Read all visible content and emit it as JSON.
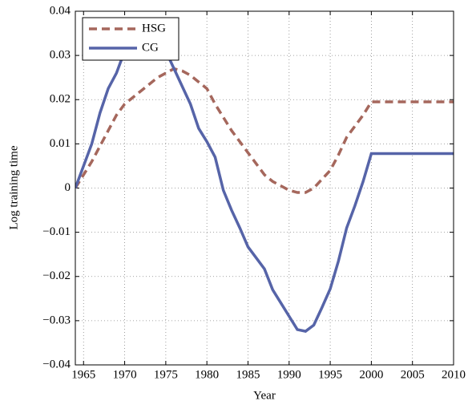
{
  "chart_data": {
    "type": "line",
    "xlabel": "Year",
    "ylabel": "Log training time",
    "x": [
      1964,
      1965,
      1966,
      1967,
      1968,
      1969,
      1970,
      1971,
      1972,
      1973,
      1974,
      1975,
      1976,
      1977,
      1978,
      1979,
      1980,
      1981,
      1982,
      1983,
      1984,
      1985,
      1986,
      1987,
      1988,
      1989,
      1990,
      1991,
      1992,
      1993,
      1994,
      1995,
      1996,
      1997,
      1998,
      1999,
      2000,
      2001,
      2002,
      2003,
      2004,
      2005,
      2006,
      2007,
      2008,
      2009,
      2010
    ],
    "series": [
      {
        "name": "HSG",
        "color": "#a5675c",
        "dashed": true,
        "values": [
          0,
          0.003,
          0.006,
          0.0095,
          0.013,
          0.0165,
          0.019,
          0.0205,
          0.022,
          0.0235,
          0.025,
          0.026,
          0.027,
          0.0265,
          0.0255,
          0.024,
          0.0225,
          0.019,
          0.016,
          0.013,
          0.0105,
          0.008,
          0.0055,
          0.003,
          0.0015,
          0.0005,
          -0.0005,
          -0.001,
          -0.001,
          0,
          0.002,
          0.004,
          0.0075,
          0.0115,
          0.014,
          0.0165,
          0.0195,
          0.0195,
          0.0195,
          0.0195,
          0.0195,
          0.0195,
          0.0195,
          0.0195,
          0.0195,
          0.0195,
          0.0195
        ]
      },
      {
        "name": "CG",
        "color": "#5664a8",
        "dashed": false,
        "values": [
          0,
          0.005,
          0.01,
          0.017,
          0.0225,
          0.026,
          0.031,
          0.033,
          0.034,
          0.034,
          0.033,
          0.031,
          0.027,
          0.023,
          0.019,
          0.0135,
          0.0105,
          0.007,
          -0.0005,
          -0.005,
          -0.009,
          -0.0133,
          -0.0158,
          -0.0183,
          -0.023,
          -0.026,
          -0.029,
          -0.032,
          -0.0324,
          -0.031,
          -0.027,
          -0.0228,
          -0.0165,
          -0.009,
          -0.004,
          0.0015,
          0.0078,
          0.0078,
          0.0078,
          0.0078,
          0.0078,
          0.0078,
          0.0078,
          0.0078,
          0.0078,
          0.0078,
          0.0078
        ]
      }
    ],
    "xlim": [
      1964,
      2010
    ],
    "xticks": [
      1965,
      1970,
      1975,
      1980,
      1985,
      1990,
      1995,
      2000,
      2005,
      2010
    ],
    "ylim": [
      -0.04,
      0.04
    ],
    "yticks": [
      {
        "value": -0.04,
        "label": "−0.04"
      },
      {
        "value": -0.03,
        "label": "−0.03"
      },
      {
        "value": -0.02,
        "label": "−0.02"
      },
      {
        "value": -0.01,
        "label": "−0.01"
      },
      0,
      0.01,
      0.02,
      0.03,
      0.04
    ],
    "grid": true,
    "legend": "upper-left"
  }
}
